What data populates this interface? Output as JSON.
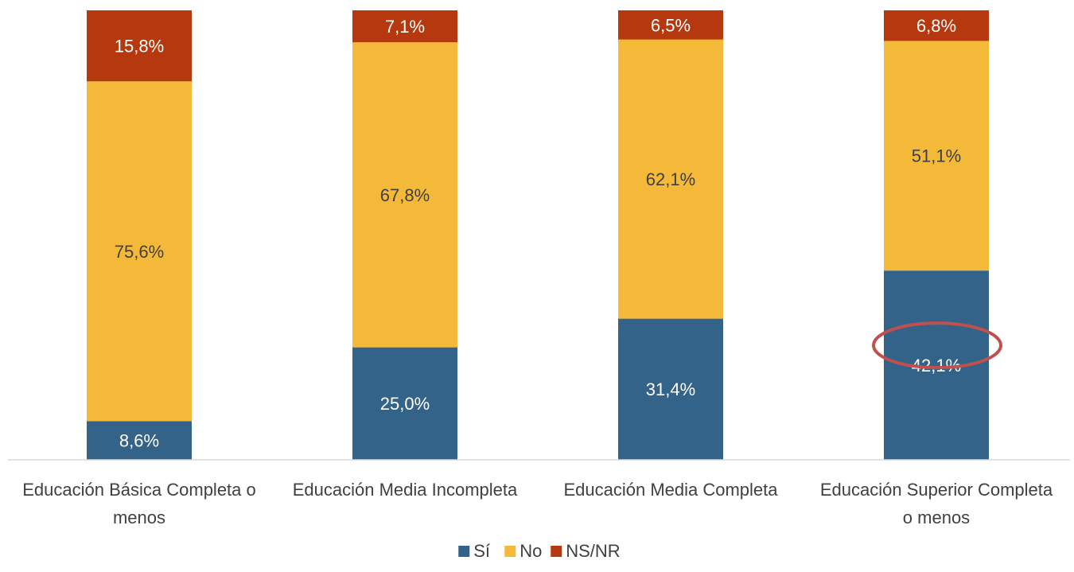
{
  "chart_data": {
    "type": "bar",
    "stacked": true,
    "percent_scale": true,
    "categories": [
      [
        "Educación Básica Completa o",
        "menos"
      ],
      [
        "Educación Media Incompleta"
      ],
      [
        "Educación Media Completa"
      ],
      [
        "Educación Superior Completa",
        "o menos"
      ]
    ],
    "series": [
      {
        "name": "Sí",
        "color": "#336388",
        "values": [
          8.6,
          25.0,
          31.4,
          42.1
        ],
        "labels": [
          "8,6%",
          "25,0%",
          "31,4%",
          "42,1%"
        ],
        "label_color": "#ffffff"
      },
      {
        "name": "No",
        "color": "#F5B93A",
        "values": [
          75.6,
          67.8,
          62.1,
          51.1
        ],
        "labels": [
          "75,6%",
          "67,8%",
          "62,1%",
          "51,1%"
        ],
        "label_color": "#404040"
      },
      {
        "name": "NS/NR",
        "color": "#B5380E",
        "values": [
          15.8,
          7.1,
          6.5,
          6.8
        ],
        "labels": [
          "15,8%",
          "7,1%",
          "6,5%",
          "6,8%"
        ],
        "label_color": "#ffffff"
      }
    ],
    "ylim": [
      0,
      100
    ],
    "grid": false,
    "legend_position": "bottom",
    "highlight": {
      "series": "Sí",
      "category_index": 3,
      "shape": "ellipse",
      "color": "#C0504D"
    }
  }
}
